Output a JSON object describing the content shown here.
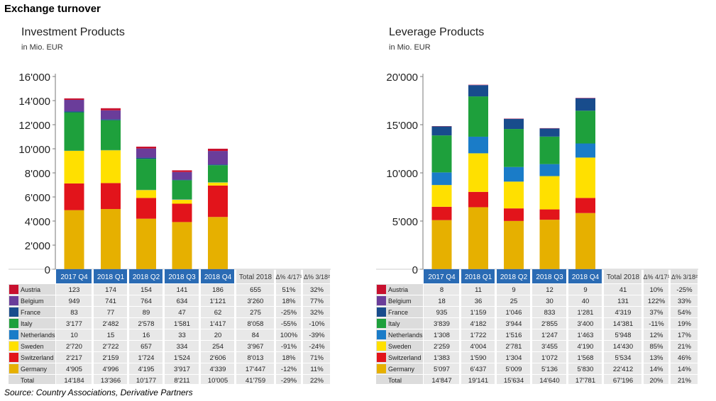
{
  "header": {
    "title": "Exchange turnover"
  },
  "footer": {
    "source": "Source: Country Associations, Derivative Partners"
  },
  "columns": [
    "2017 Q4",
    "2018 Q1",
    "2018 Q2",
    "2018 Q3",
    "2018 Q4",
    "Total 2018",
    "Δ% 4/17¹",
    "Δ% 3/18²"
  ],
  "colors": {
    "Austria": "#c8102e",
    "Belgium": "#6a3d9a",
    "France": "#184c8c",
    "Italy": "#1ea03c",
    "Netherlands": "#1a7cc8",
    "Sweden": "#ffe000",
    "Switzerland": "#e2141b",
    "Germany": "#e6b000",
    "header_bg": "#2a6bb4",
    "cell_bg": "#e8e8e8",
    "label_bg": "#dcdcdc"
  },
  "chart_data": [
    {
      "type": "bar",
      "stacked": true,
      "title": "Investment Products",
      "subtitle": "in Mio. EUR",
      "categories": [
        "2017 Q4",
        "2018 Q1",
        "2018 Q2",
        "2018 Q3",
        "2018 Q4"
      ],
      "ylim": [
        0,
        16000
      ],
      "yticks": [
        "0",
        "2'000",
        "4'000",
        "6'000",
        "8'000",
        "10'000",
        "12'000",
        "14'000",
        "16'000"
      ],
      "grid": false,
      "series": [
        {
          "name": "Austria",
          "values": [
            123,
            174,
            154,
            141,
            186
          ],
          "labels": [
            "123",
            "174",
            "154",
            "141",
            "186"
          ],
          "total": "655",
          "d1": "51%",
          "d2": "32%"
        },
        {
          "name": "Belgium",
          "values": [
            949,
            741,
            764,
            634,
            1121
          ],
          "labels": [
            "949",
            "741",
            "764",
            "634",
            "1'121"
          ],
          "total": "3'260",
          "d1": "18%",
          "d2": "77%"
        },
        {
          "name": "France",
          "values": [
            83,
            77,
            89,
            47,
            62
          ],
          "labels": [
            "83",
            "77",
            "89",
            "47",
            "62"
          ],
          "total": "275",
          "d1": "-25%",
          "d2": "32%"
        },
        {
          "name": "Italy",
          "values": [
            3177,
            2482,
            2578,
            1581,
            1417
          ],
          "labels": [
            "3'177",
            "2'482",
            "2'578",
            "1'581",
            "1'417"
          ],
          "total": "8'058",
          "d1": "-55%",
          "d2": "-10%"
        },
        {
          "name": "Netherlands",
          "values": [
            10,
            15,
            16,
            33,
            20
          ],
          "labels": [
            "10",
            "15",
            "16",
            "33",
            "20"
          ],
          "total": "84",
          "d1": "100%",
          "d2": "-39%"
        },
        {
          "name": "Sweden",
          "values": [
            2720,
            2722,
            657,
            334,
            254
          ],
          "labels": [
            "2'720",
            "2'722",
            "657",
            "334",
            "254"
          ],
          "total": "3'967",
          "d1": "-91%",
          "d2": "-24%"
        },
        {
          "name": "Switzerland",
          "values": [
            2217,
            2159,
            1724,
            1524,
            2606
          ],
          "labels": [
            "2'217",
            "2'159",
            "1'724",
            "1'524",
            "2'606"
          ],
          "total": "8'013",
          "d1": "18%",
          "d2": "71%"
        },
        {
          "name": "Germany",
          "values": [
            4905,
            4996,
            4195,
            3917,
            4339
          ],
          "labels": [
            "4'905",
            "4'996",
            "4'195",
            "3'917",
            "4'339"
          ],
          "total": "17'447",
          "d1": "-12%",
          "d2": "11%"
        }
      ],
      "totals": {
        "name": "Total",
        "labels": [
          "14'184",
          "13'366",
          "10'177",
          "8'211",
          "10'005"
        ],
        "total": "41'759",
        "d1": "-29%",
        "d2": "22%"
      }
    },
    {
      "type": "bar",
      "stacked": true,
      "title": "Leverage Products",
      "subtitle": "in Mio. EUR",
      "categories": [
        "2017 Q4",
        "2018 Q1",
        "2018 Q2",
        "2018 Q3",
        "2018 Q4"
      ],
      "ylim": [
        0,
        20000
      ],
      "yticks": [
        "0",
        "5'000",
        "10'000",
        "15'000",
        "20'000"
      ],
      "grid": false,
      "series": [
        {
          "name": "Austria",
          "values": [
            8,
            11,
            9,
            12,
            9
          ],
          "labels": [
            "8",
            "11",
            "9",
            "12",
            "9"
          ],
          "total": "41",
          "d1": "10%",
          "d2": "-25%"
        },
        {
          "name": "Belgium",
          "values": [
            18,
            36,
            25,
            30,
            40
          ],
          "labels": [
            "18",
            "36",
            "25",
            "30",
            "40"
          ],
          "total": "131",
          "d1": "122%",
          "d2": "33%"
        },
        {
          "name": "France",
          "values": [
            935,
            1159,
            1046,
            833,
            1281
          ],
          "labels": [
            "935",
            "1'159",
            "1'046",
            "833",
            "1'281"
          ],
          "total": "4'319",
          "d1": "37%",
          "d2": "54%"
        },
        {
          "name": "Italy",
          "values": [
            3839,
            4182,
            3944,
            2855,
            3400
          ],
          "labels": [
            "3'839",
            "4'182",
            "3'944",
            "2'855",
            "3'400"
          ],
          "total": "14'381",
          "d1": "-11%",
          "d2": "19%"
        },
        {
          "name": "Netherlands",
          "values": [
            1308,
            1722,
            1516,
            1247,
            1463
          ],
          "labels": [
            "1'308",
            "1'722",
            "1'516",
            "1'247",
            "1'463"
          ],
          "total": "5'948",
          "d1": "12%",
          "d2": "17%"
        },
        {
          "name": "Sweden",
          "values": [
            2259,
            4004,
            2781,
            3455,
            4190
          ],
          "labels": [
            "2'259",
            "4'004",
            "2'781",
            "3'455",
            "4'190"
          ],
          "total": "14'430",
          "d1": "85%",
          "d2": "21%"
        },
        {
          "name": "Switzerland",
          "values": [
            1383,
            1590,
            1304,
            1072,
            1568
          ],
          "labels": [
            "1'383",
            "1'590",
            "1'304",
            "1'072",
            "1'568"
          ],
          "total": "5'534",
          "d1": "13%",
          "d2": "46%"
        },
        {
          "name": "Germany",
          "values": [
            5097,
            6437,
            5009,
            5136,
            5830
          ],
          "labels": [
            "5'097",
            "6'437",
            "5'009",
            "5'136",
            "5'830"
          ],
          "total": "22'412",
          "d1": "14%",
          "d2": "14%"
        }
      ],
      "totals": {
        "name": "Total",
        "labels": [
          "14'847",
          "19'141",
          "15'634",
          "14'640",
          "17'781"
        ],
        "total": "67'196",
        "d1": "20%",
        "d2": "21%"
      }
    }
  ]
}
